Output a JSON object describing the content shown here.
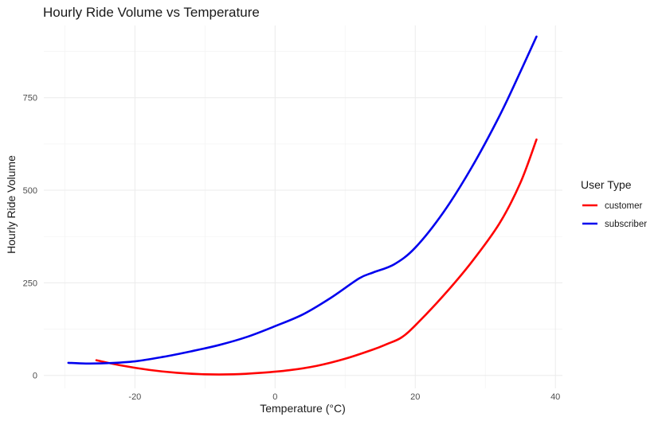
{
  "chart_data": {
    "type": "line",
    "title": "Hourly Ride Volume vs Temperature",
    "xlabel": "Temperature (°C)",
    "ylabel": "Hourly Ride Volume",
    "xlim": [
      -33,
      41
    ],
    "ylim": [
      -35,
      945
    ],
    "x_ticks": [
      -20,
      0,
      20,
      40
    ],
    "x_minor": [
      -30,
      -10,
      10,
      30
    ],
    "y_ticks": [
      0,
      250,
      500,
      750
    ],
    "y_minor": [
      125,
      375,
      625,
      875
    ],
    "grid": true,
    "legend": {
      "title": "User Type",
      "position": "right"
    },
    "series": [
      {
        "name": "customer",
        "color": "#ff0000",
        "points": [
          [
            -25.5,
            41
          ],
          [
            -22,
            27
          ],
          [
            -18,
            15
          ],
          [
            -14,
            7
          ],
          [
            -10,
            3
          ],
          [
            -6,
            3
          ],
          [
            -2,
            7
          ],
          [
            2,
            14
          ],
          [
            6,
            26
          ],
          [
            10,
            45
          ],
          [
            14,
            70
          ],
          [
            16,
            85
          ],
          [
            18,
            102
          ],
          [
            20,
            135
          ],
          [
            24,
            215
          ],
          [
            28,
            305
          ],
          [
            32,
            410
          ],
          [
            35,
            520
          ],
          [
            37.3,
            637
          ]
        ]
      },
      {
        "name": "subscriber",
        "color": "#0000ee",
        "points": [
          [
            -29.5,
            34
          ],
          [
            -27,
            32
          ],
          [
            -24,
            33
          ],
          [
            -20,
            38
          ],
          [
            -16,
            50
          ],
          [
            -12,
            65
          ],
          [
            -8,
            82
          ],
          [
            -4,
            104
          ],
          [
            0,
            133
          ],
          [
            4,
            165
          ],
          [
            8,
            210
          ],
          [
            12,
            262
          ],
          [
            14,
            278
          ],
          [
            17,
            300
          ],
          [
            20,
            345
          ],
          [
            24,
            440
          ],
          [
            28,
            560
          ],
          [
            32,
            700
          ],
          [
            35,
            820
          ],
          [
            37.3,
            915
          ]
        ]
      }
    ]
  }
}
